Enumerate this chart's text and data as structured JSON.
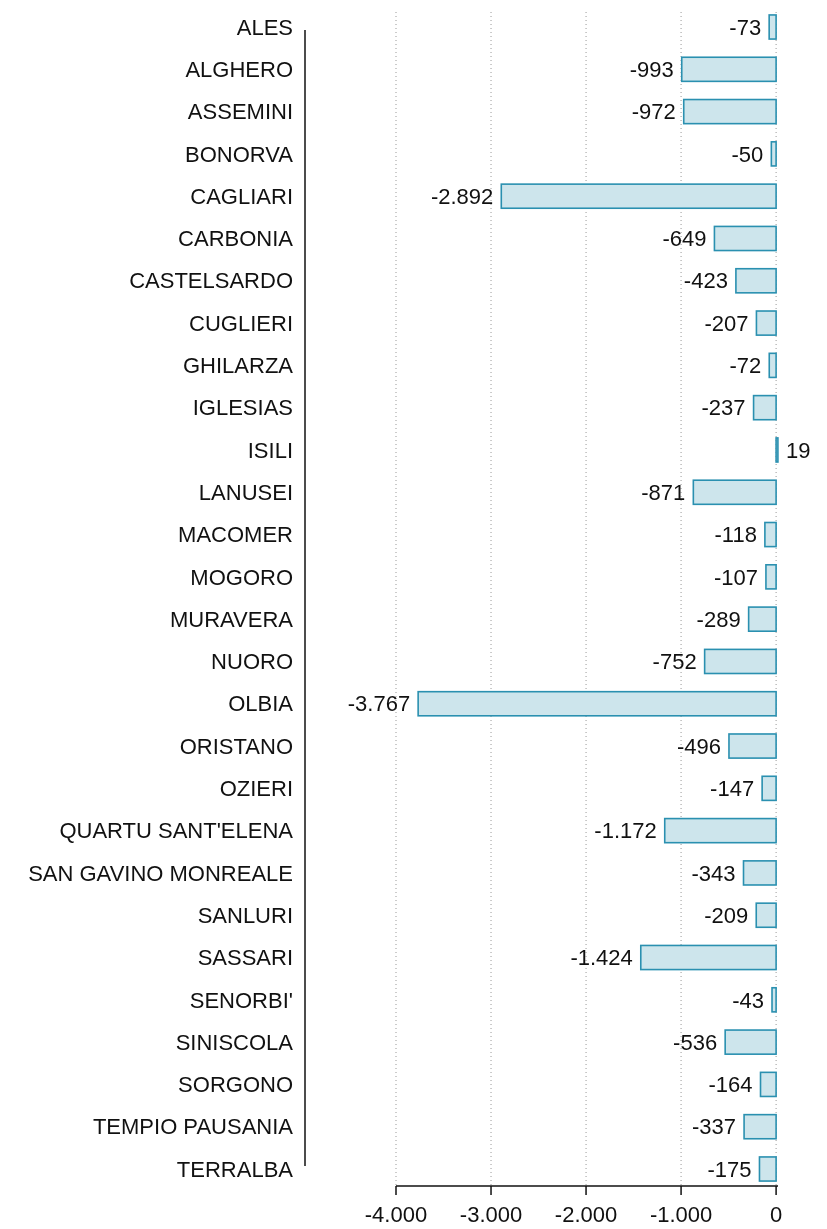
{
  "chart_data": {
    "type": "bar",
    "orientation": "horizontal",
    "categories": [
      "ALES",
      "ALGHERO",
      "ASSEMINI",
      "BONORVA",
      "CAGLIARI",
      "CARBONIA",
      "CASTELSARDO",
      "CUGLIERI",
      "GHILARZA",
      "IGLESIAS",
      "ISILI",
      "LANUSEI",
      "MACOMER",
      "MOGORO",
      "MURAVERA",
      "NUORO",
      "OLBIA",
      "ORISTANO",
      "OZIERI",
      "QUARTU SANT'ELENA",
      "SAN GAVINO MONREALE",
      "SANLURI",
      "SASSARI",
      "SENORBI'",
      "SINISCOLA",
      "SORGONO",
      "TEMPIO PAUSANIA",
      "TERRALBA"
    ],
    "values": [
      -73,
      -993,
      -972,
      -50,
      -2892,
      -649,
      -423,
      -207,
      -72,
      -237,
      19,
      -871,
      -118,
      -107,
      -289,
      -752,
      -3767,
      -496,
      -147,
      -1172,
      -343,
      -209,
      -1424,
      -43,
      -536,
      -164,
      -337,
      -175
    ],
    "value_labels": [
      "-73",
      "-993",
      "-972",
      "-50",
      "-2.892",
      "-649",
      "-423",
      "-207",
      "-72",
      "-237",
      "19",
      "-871",
      "-118",
      "-107",
      "-289",
      "-752",
      "-3.767",
      "-496",
      "-147",
      "-1.172",
      "-343",
      "-209",
      "-1.424",
      "-43",
      "-536",
      "-164",
      "-337",
      "-175"
    ],
    "color": "#cde5ec",
    "xlim": [
      -4000,
      20
    ],
    "xticks": [
      {
        "value": -4000,
        "label": "-4.000"
      },
      {
        "value": -3000,
        "label": "-3.000"
      },
      {
        "value": -2000,
        "label": "-2.000"
      },
      {
        "value": -1000,
        "label": "-1.000"
      },
      0
    ],
    "grid": "x"
  }
}
